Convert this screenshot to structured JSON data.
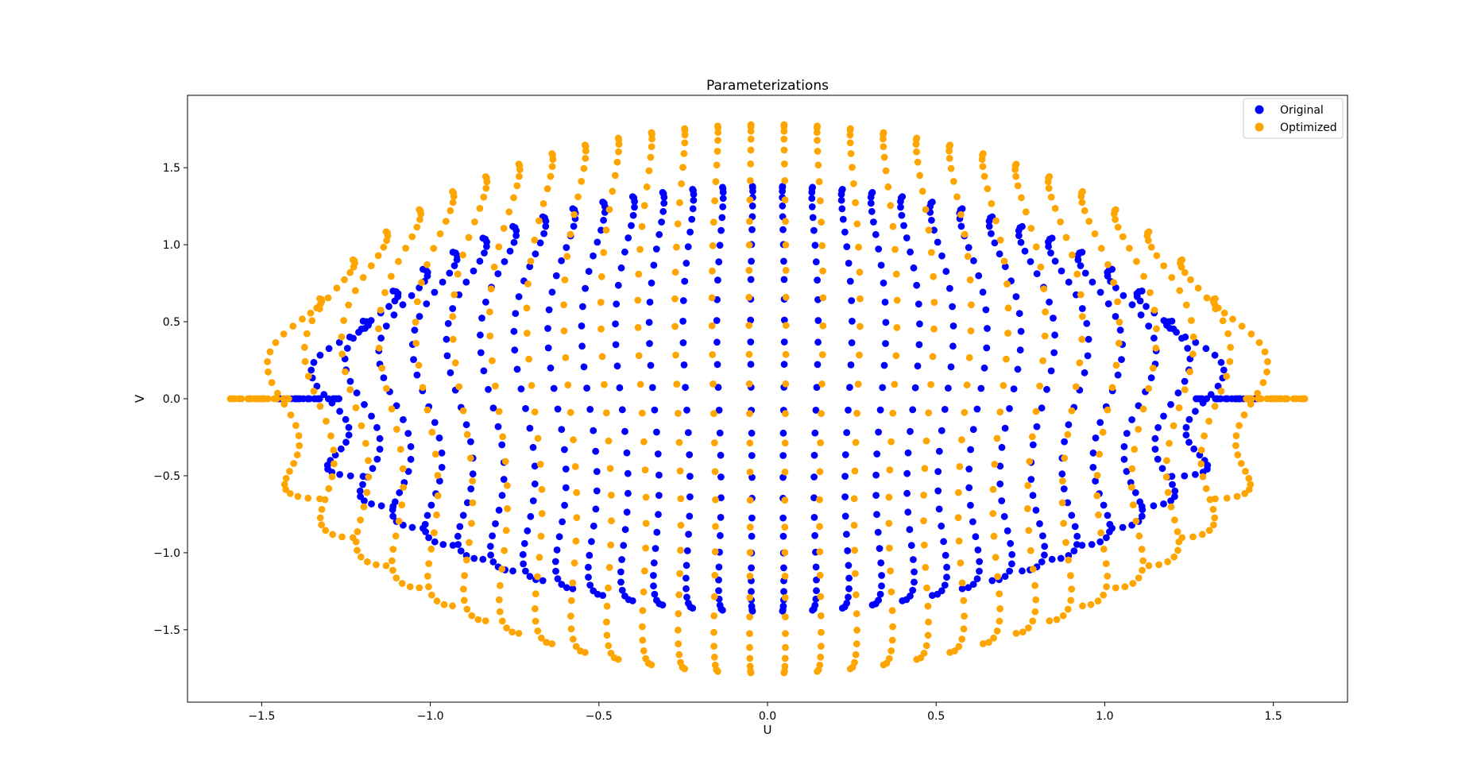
{
  "chart_data": {
    "type": "scatter",
    "title": "Parameterizations",
    "xlabel": "U",
    "ylabel": "V",
    "xlim": [
      -1.72,
      1.72
    ],
    "ylim": [
      -1.97,
      1.97
    ],
    "xticks": [
      -1.5,
      -1.0,
      -0.5,
      0.0,
      0.5,
      1.0,
      1.5
    ],
    "xtick_labels": [
      "−1.5",
      "−1.0",
      "−0.5",
      "0.0",
      "0.5",
      "1.0",
      "1.5"
    ],
    "yticks": [
      -1.5,
      -1.0,
      -0.5,
      0.0,
      0.5,
      1.0,
      1.5
    ],
    "ytick_labels": [
      "−1.5",
      "−1.0",
      "−0.5",
      "0.0",
      "0.5",
      "1.0",
      "1.5"
    ],
    "grid": false,
    "legend_position": "top-right",
    "series": [
      {
        "name": "Original",
        "color": "#0000ff",
        "description": "dense lattice of points in a lens-shaped region, U from about -1.40 to 1.40, V from about -1.38 to 1.38; columns curve in an S-shape",
        "u_extent": 1.4,
        "v_extent": 1.38,
        "columns": 30,
        "points_per_column": 30,
        "wave_amplitude": 0.06
      },
      {
        "name": "Optimized",
        "color": "#ffa500",
        "description": "dense lattice of points in a wider lens-shaped region, U from about -1.55 to 1.55, V from about -1.78 to 1.78",
        "u_extent": 1.55,
        "v_extent": 1.78,
        "columns": 30,
        "points_per_column": 30,
        "wave_amplitude": 0.05
      }
    ]
  }
}
